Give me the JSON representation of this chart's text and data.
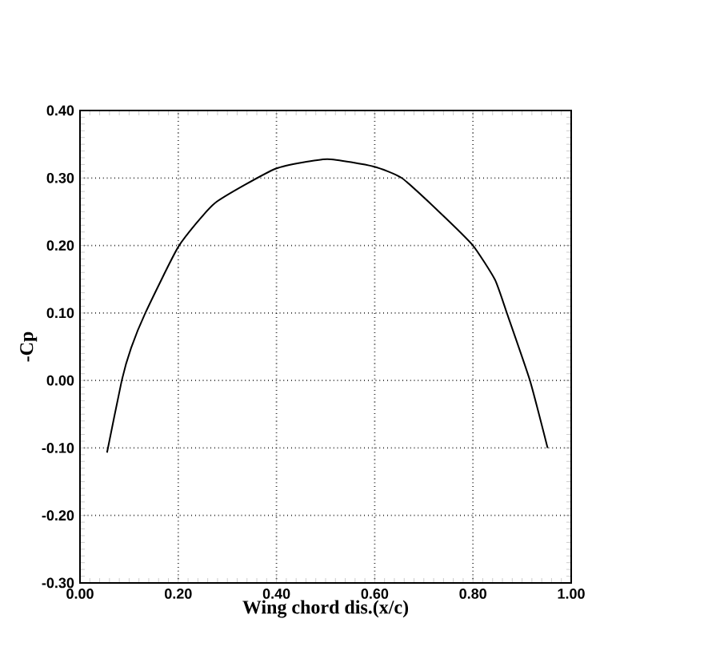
{
  "chart_data": {
    "type": "line",
    "xlabel": "Wing chord dis.(x/c)",
    "ylabel": "-Cp",
    "xlim": [
      0,
      1
    ],
    "ylim": [
      -0.3,
      0.4
    ],
    "xticks": [
      {
        "value": 0,
        "label": "0.00"
      },
      {
        "value": 0.2,
        "label": "0.20"
      },
      {
        "value": 0.4,
        "label": "0.40"
      },
      {
        "value": 0.6,
        "label": "0.60"
      },
      {
        "value": 0.8,
        "label": "0.80"
      },
      {
        "value": 1,
        "label": "1.00"
      }
    ],
    "yticks": [
      {
        "value": -0.3,
        "label": "-0.30"
      },
      {
        "value": -0.2,
        "label": "-0.20"
      },
      {
        "value": -0.1,
        "label": "-0.10"
      },
      {
        "value": 0,
        "label": "0.00"
      },
      {
        "value": 0.1,
        "label": "0.10"
      },
      {
        "value": 0.2,
        "label": "0.20"
      },
      {
        "value": 0.3,
        "label": "0.30"
      },
      {
        "value": 0.4,
        "label": "0.40"
      }
    ],
    "grid": true,
    "marker": "none",
    "line_style": "solid",
    "series": [
      {
        "color": "#000000",
        "x": [
          0.055,
          0.085,
          0.104,
          0.133,
          0.201,
          0.275,
          0.399,
          0.503,
          0.598,
          0.655,
          0.731,
          0.8,
          0.845,
          0.869,
          0.916,
          0.952
        ],
        "values": [
          -0.107,
          0,
          0.048,
          0.1,
          0.199,
          0.263,
          0.314,
          0.328,
          0.317,
          0.3,
          0.25,
          0.2,
          0.149,
          0.1,
          0,
          -0.1
        ]
      }
    ]
  }
}
